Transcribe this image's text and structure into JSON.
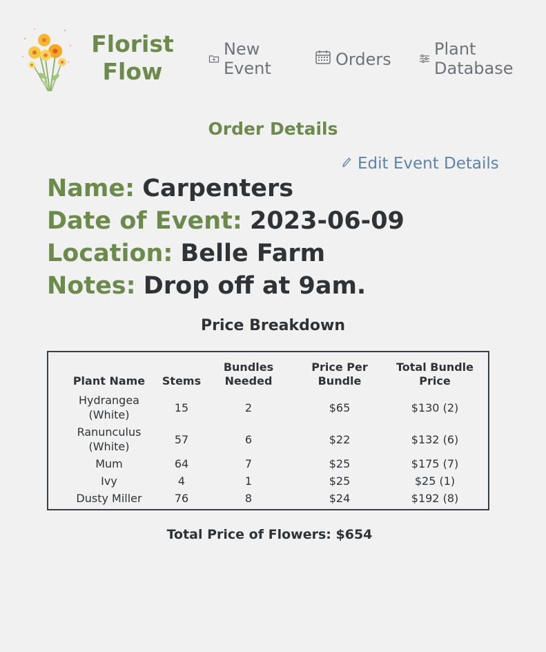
{
  "app": {
    "brand_line1": "Florist",
    "brand_line2": "Flow"
  },
  "nav": {
    "new_event": {
      "line1": "New",
      "line2": "Event",
      "icon": "folder-plus-icon"
    },
    "orders": {
      "label": "Orders",
      "icon": "calendar-icon"
    },
    "plant_database": {
      "line1": "Plant",
      "line2": "Database",
      "icon": "sliders-icon"
    }
  },
  "page": {
    "title": "Order Details",
    "edit_label": "Edit Event Details"
  },
  "details": {
    "name_label": "Name:",
    "name_value": "Carpenters",
    "date_label": "Date of Event:",
    "date_value": "2023-06-09",
    "location_label": "Location:",
    "location_value": "Belle Farm",
    "notes_label": "Notes:",
    "notes_value": "Drop off at 9am."
  },
  "breakdown": {
    "title": "Price Breakdown",
    "headers": {
      "plant_name": "Plant Name",
      "stems": "Stems",
      "bundles_1": "Bundles",
      "bundles_2": "Needed",
      "price_1": "Price Per",
      "price_2": "Bundle",
      "total_1": "Total Bundle",
      "total_2": "Price"
    },
    "rows": [
      {
        "name1": "Hydrangea",
        "name2": "(White)",
        "stems": "15",
        "bundles": "2",
        "price": "$65",
        "total": "$130 (2)"
      },
      {
        "name1": "Ranunculus",
        "name2": "(White)",
        "stems": "57",
        "bundles": "6",
        "price": "$22",
        "total": "$132 (6)"
      },
      {
        "name1": "Mum",
        "name2": "",
        "stems": "64",
        "bundles": "7",
        "price": "$25",
        "total": "$175 (7)"
      },
      {
        "name1": "Ivy",
        "name2": "",
        "stems": "4",
        "bundles": "1",
        "price": "$25",
        "total": "$25 (1)"
      },
      {
        "name1": "Dusty Miller",
        "name2": "",
        "stems": "76",
        "bundles": "8",
        "price": "$24",
        "total": "$192 (8)"
      }
    ],
    "total_text": "Total Price of Flowers: $654"
  },
  "colors": {
    "brand_green": "#6b8a4b",
    "link_blue": "#5d83a6",
    "text_dark": "#2f3336",
    "nav_gray": "#6f7276",
    "background": "#f1f1f1"
  }
}
